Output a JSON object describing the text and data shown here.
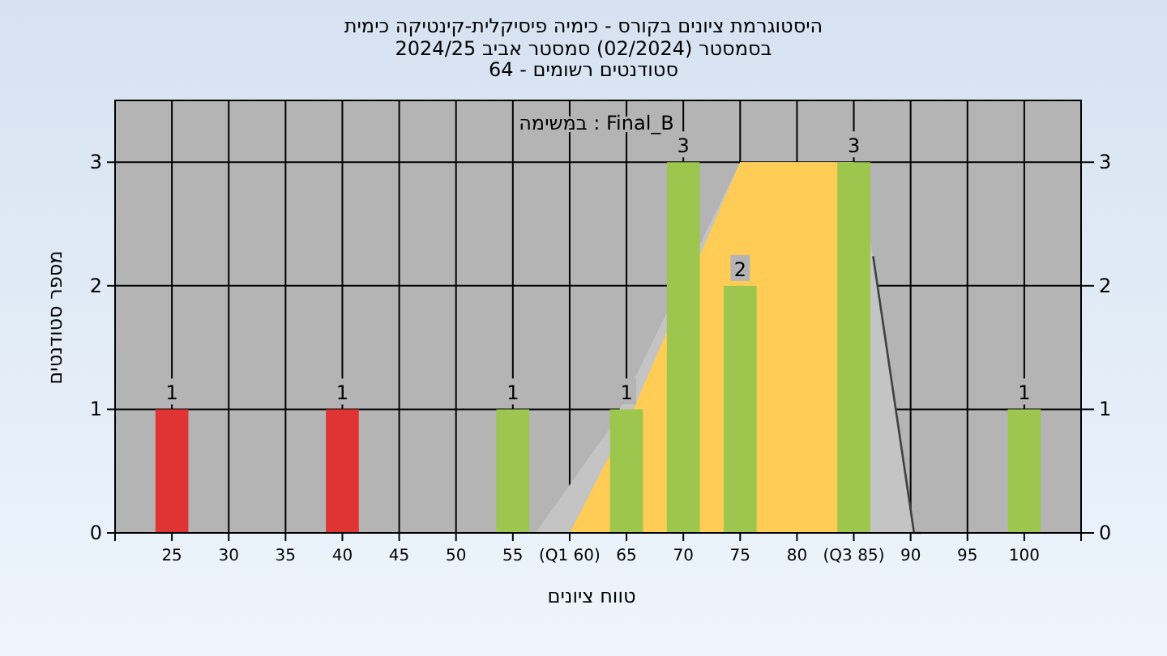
{
  "chart_data": {
    "type": "bar",
    "title": "היסטוגרמת ציונים בקורס - כימיה פיסיקלית-קינטיקה כימית",
    "subtitle": "בסמסטר  (02/2024)  סמסטר אביב 2024/25\nסטודנטים רשומים - 64",
    "xlabel": "טווח ציונים",
    "ylabel": "מספר סטודנטים",
    "annotations": [
      "במשימה : Final_B"
    ],
    "xlim": [
      20,
      105
    ],
    "xticks": [
      {
        "value": 20,
        "label": null
      },
      25,
      30,
      35,
      40,
      45,
      50,
      55,
      {
        "value": 60,
        "label": "(Q1 60)"
      },
      65,
      70,
      75,
      80,
      {
        "value": 85,
        "label": "(Q3 85)"
      },
      90,
      95,
      100,
      {
        "value": 105,
        "label": null
      }
    ],
    "ylim": [
      0,
      3.5
    ],
    "yticks": [
      0,
      1,
      2,
      3
    ],
    "y2lim": [
      0,
      3.5
    ],
    "y2ticks": [
      0,
      1,
      2,
      3
    ],
    "grid": true,
    "series": [
      {
        "type": "area",
        "color": "#c4c4c4",
        "x": [
          57,
          63.7,
          75,
          85,
          86.7,
          90.3
        ],
        "values": [
          0,
          0.87,
          3,
          3,
          2.24,
          0
        ]
      },
      {
        "type": "area",
        "color": "#ffcc55",
        "x": [
          60,
          65.6,
          75,
          85,
          85
        ],
        "values": [
          0,
          1,
          3,
          3,
          0
        ]
      },
      {
        "type": "line",
        "color": "#404040",
        "x": [
          86.7,
          90.3,
          90.9
        ],
        "values": [
          2.24,
          0,
          0
        ]
      },
      {
        "x": [
          25,
          40,
          55,
          65,
          70,
          75,
          85,
          100
        ],
        "values": [
          1,
          1,
          1,
          1,
          3,
          2,
          3,
          1
        ],
        "colors": [
          "#e03434",
          "#e03434",
          "#9cc64e",
          "#9cc64e",
          "#9cc64e",
          "#9cc64e",
          "#9cc64e",
          "#9cc64e"
        ],
        "value_labels": [
          "1",
          "1",
          "1",
          "1",
          "3",
          "2",
          "3",
          "1"
        ]
      }
    ]
  }
}
